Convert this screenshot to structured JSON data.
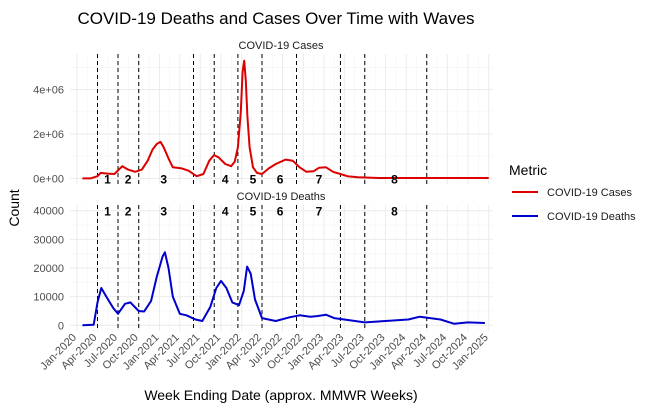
{
  "chart_data": {
    "type": "line",
    "title": "COVID-19 Deaths and Cases Over Time with Waves",
    "xlabel": "Week Ending Date (approx. MMWR Weeks)",
    "ylabel": "Count",
    "x_axis": {
      "ticks": [
        "2020-01-01",
        "2020-04-01",
        "2020-07-01",
        "2020-10-01",
        "2021-01-01",
        "2021-04-01",
        "2021-07-01",
        "2021-10-01",
        "2022-01-01",
        "2022-04-01",
        "2022-07-01",
        "2022-10-01",
        "2023-01-01",
        "2023-04-01",
        "2023-07-01",
        "2023-10-01",
        "2024-01-01",
        "2024-04-01",
        "2024-07-01",
        "2024-10-01",
        "2025-01-01"
      ],
      "tick_labels": [
        "Jan-2020",
        "Apr-2020",
        "Jul-2020",
        "Oct-2020",
        "Jan-2021",
        "Apr-2021",
        "Jul-2021",
        "Oct-2021",
        "Jan-2022",
        "Apr-2022",
        "Jul-2022",
        "Oct-2022",
        "Jan-2023",
        "Apr-2023",
        "Jul-2023",
        "Oct-2023",
        "Jan-2024",
        "Apr-2024",
        "Jul-2024",
        "Oct-2024",
        "Jan-2025"
      ],
      "range": [
        "2019-12-01",
        "2025-01-20"
      ]
    },
    "legend": {
      "title": "Metric",
      "position": "right",
      "entries": [
        {
          "label": "COVID-19 Cases",
          "color": "#dd0000"
        },
        {
          "label": "COVID-19 Deaths",
          "color": "#0000cc"
        }
      ]
    },
    "wave_boundaries": [
      "2020-04-01",
      "2020-07-01",
      "2020-10-01",
      "2021-06-01",
      "2021-09-01",
      "2021-12-15",
      "2022-04-01",
      "2022-09-01",
      "2023-03-15",
      "2023-07-01",
      "2024-04-01"
    ],
    "waves": [
      {
        "label": "1",
        "x": "2020-05-15"
      },
      {
        "label": "2",
        "x": "2020-08-15"
      },
      {
        "label": "3",
        "x": "2021-01-20"
      },
      {
        "label": "4",
        "x": "2021-10-20"
      },
      {
        "label": "5",
        "x": "2022-02-20"
      },
      {
        "label": "6",
        "x": "2022-06-20"
      },
      {
        "label": "7",
        "x": "2022-12-10"
      },
      {
        "label": "8",
        "x": "2023-11-10"
      }
    ],
    "panels": [
      {
        "title": "COVID-19 Cases",
        "color": "#dd0000",
        "ylim": [
          -250000,
          5600000
        ],
        "y_ticks": [
          0,
          2000000,
          4000000
        ],
        "y_tick_labels": [
          "0e+00",
          "2e+06",
          "4e+06"
        ],
        "wave_label_y": 0,
        "series": {
          "name": "COVID-19 Cases",
          "x": [
            "2020-01-25",
            "2020-03-01",
            "2020-04-01",
            "2020-04-15",
            "2020-05-15",
            "2020-06-15",
            "2020-07-20",
            "2020-08-15",
            "2020-09-15",
            "2020-10-15",
            "2020-11-10",
            "2020-12-01",
            "2020-12-20",
            "2021-01-05",
            "2021-01-20",
            "2021-02-10",
            "2021-03-01",
            "2021-04-10",
            "2021-05-10",
            "2021-06-15",
            "2021-07-15",
            "2021-08-10",
            "2021-08-31",
            "2021-09-20",
            "2021-10-20",
            "2021-11-15",
            "2021-12-01",
            "2021-12-15",
            "2021-12-28",
            "2022-01-05",
            "2022-01-12",
            "2022-01-19",
            "2022-01-26",
            "2022-02-05",
            "2022-02-20",
            "2022-03-10",
            "2022-04-01",
            "2022-05-01",
            "2022-06-01",
            "2022-07-15",
            "2022-08-15",
            "2022-09-15",
            "2022-10-15",
            "2022-11-15",
            "2022-12-10",
            "2023-01-10",
            "2023-02-10",
            "2023-03-15",
            "2023-04-15",
            "2023-06-01",
            "2023-09-01",
            "2024-01-01",
            "2024-06-01",
            "2025-01-01"
          ],
          "y": [
            0,
            0,
            100000,
            250000,
            220000,
            200000,
            550000,
            400000,
            300000,
            400000,
            800000,
            1300000,
            1550000,
            1650000,
            1400000,
            900000,
            500000,
            450000,
            350000,
            100000,
            200000,
            800000,
            1050000,
            950000,
            650000,
            550000,
            750000,
            1400000,
            3000000,
            4800000,
            5300000,
            4400000,
            2800000,
            1400000,
            500000,
            250000,
            200000,
            450000,
            650000,
            850000,
            800000,
            500000,
            300000,
            320000,
            480000,
            500000,
            300000,
            200000,
            100000,
            50000,
            20000,
            20000,
            20000,
            20000
          ]
        }
      },
      {
        "title": "COVID-19 Deaths",
        "color": "#0000cc",
        "ylim": [
          -2000,
          42000
        ],
        "y_ticks": [
          0,
          10000,
          20000,
          30000,
          40000
        ],
        "y_tick_labels": [
          "0",
          "10000",
          "20000",
          "30000",
          "40000"
        ],
        "wave_label_y": 40000,
        "series": {
          "name": "COVID-19 Deaths",
          "x": [
            "2020-01-25",
            "2020-03-15",
            "2020-04-01",
            "2020-04-18",
            "2020-05-10",
            "2020-06-10",
            "2020-07-01",
            "2020-08-01",
            "2020-08-25",
            "2020-10-01",
            "2020-10-25",
            "2020-11-25",
            "2020-12-20",
            "2021-01-15",
            "2021-01-25",
            "2021-02-10",
            "2021-03-01",
            "2021-04-01",
            "2021-05-01",
            "2021-06-10",
            "2021-07-10",
            "2021-08-15",
            "2021-09-10",
            "2021-10-01",
            "2021-10-25",
            "2021-11-20",
            "2021-12-20",
            "2022-01-10",
            "2022-01-25",
            "2022-02-10",
            "2022-03-01",
            "2022-04-01",
            "2022-06-01",
            "2022-08-01",
            "2022-09-15",
            "2022-11-01",
            "2022-12-01",
            "2023-01-10",
            "2023-02-15",
            "2023-04-01",
            "2023-07-01",
            "2023-10-01",
            "2024-01-10",
            "2024-03-01",
            "2024-06-01",
            "2024-08-01",
            "2024-10-01",
            "2024-12-15"
          ],
          "y": [
            0,
            200,
            8000,
            13000,
            10000,
            6000,
            4000,
            7500,
            8000,
            5000,
            4800,
            8500,
            17000,
            24000,
            25500,
            20000,
            10000,
            4000,
            3500,
            2000,
            1500,
            6500,
            13000,
            15500,
            13000,
            8000,
            7000,
            12000,
            20500,
            18000,
            9000,
            2500,
            1500,
            2800,
            3500,
            3000,
            3200,
            3700,
            2500,
            2000,
            1000,
            1500,
            2000,
            3000,
            2000,
            500,
            1000,
            800
          ]
        }
      }
    ]
  }
}
